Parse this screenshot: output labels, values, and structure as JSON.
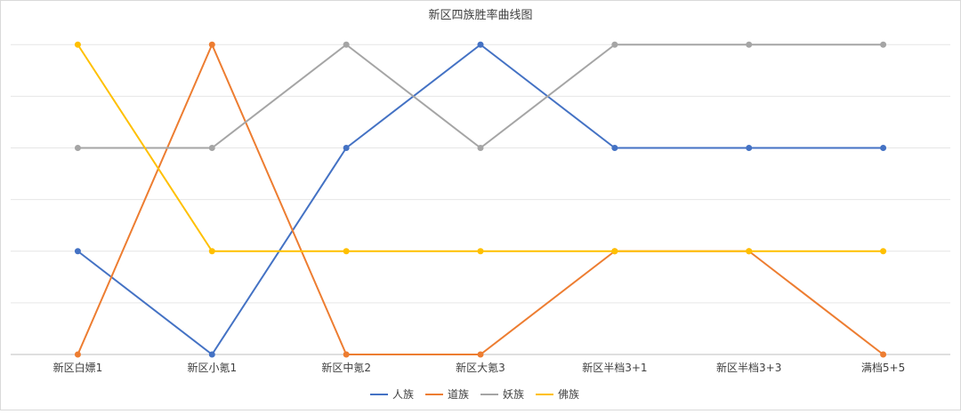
{
  "chart_data": {
    "type": "line",
    "title": "新区四族胜率曲线图",
    "xlabel": "",
    "ylabel": "",
    "categories": [
      "新区白嫖1",
      "新区小氪1",
      "新区中氪2",
      "新区大氪3",
      "新区半档3+1",
      "新区半档3+3",
      "满档5+5"
    ],
    "ylim": [
      0,
      3.2
    ],
    "grid": true,
    "legend_position": "bottom",
    "series": [
      {
        "name": "人族",
        "color": "#4472C4",
        "values": [
          1,
          0,
          2,
          3,
          2,
          2,
          2
        ]
      },
      {
        "name": "道族",
        "color": "#ED7D31",
        "values": [
          0,
          3,
          0,
          0,
          1,
          1,
          0
        ]
      },
      {
        "name": "妖族",
        "color": "#A5A5A5",
        "values": [
          2,
          2,
          3,
          2,
          3,
          3,
          3
        ]
      },
      {
        "name": "佛族",
        "color": "#FFC000",
        "values": [
          3,
          1,
          1,
          1,
          1,
          1,
          1
        ]
      }
    ]
  }
}
